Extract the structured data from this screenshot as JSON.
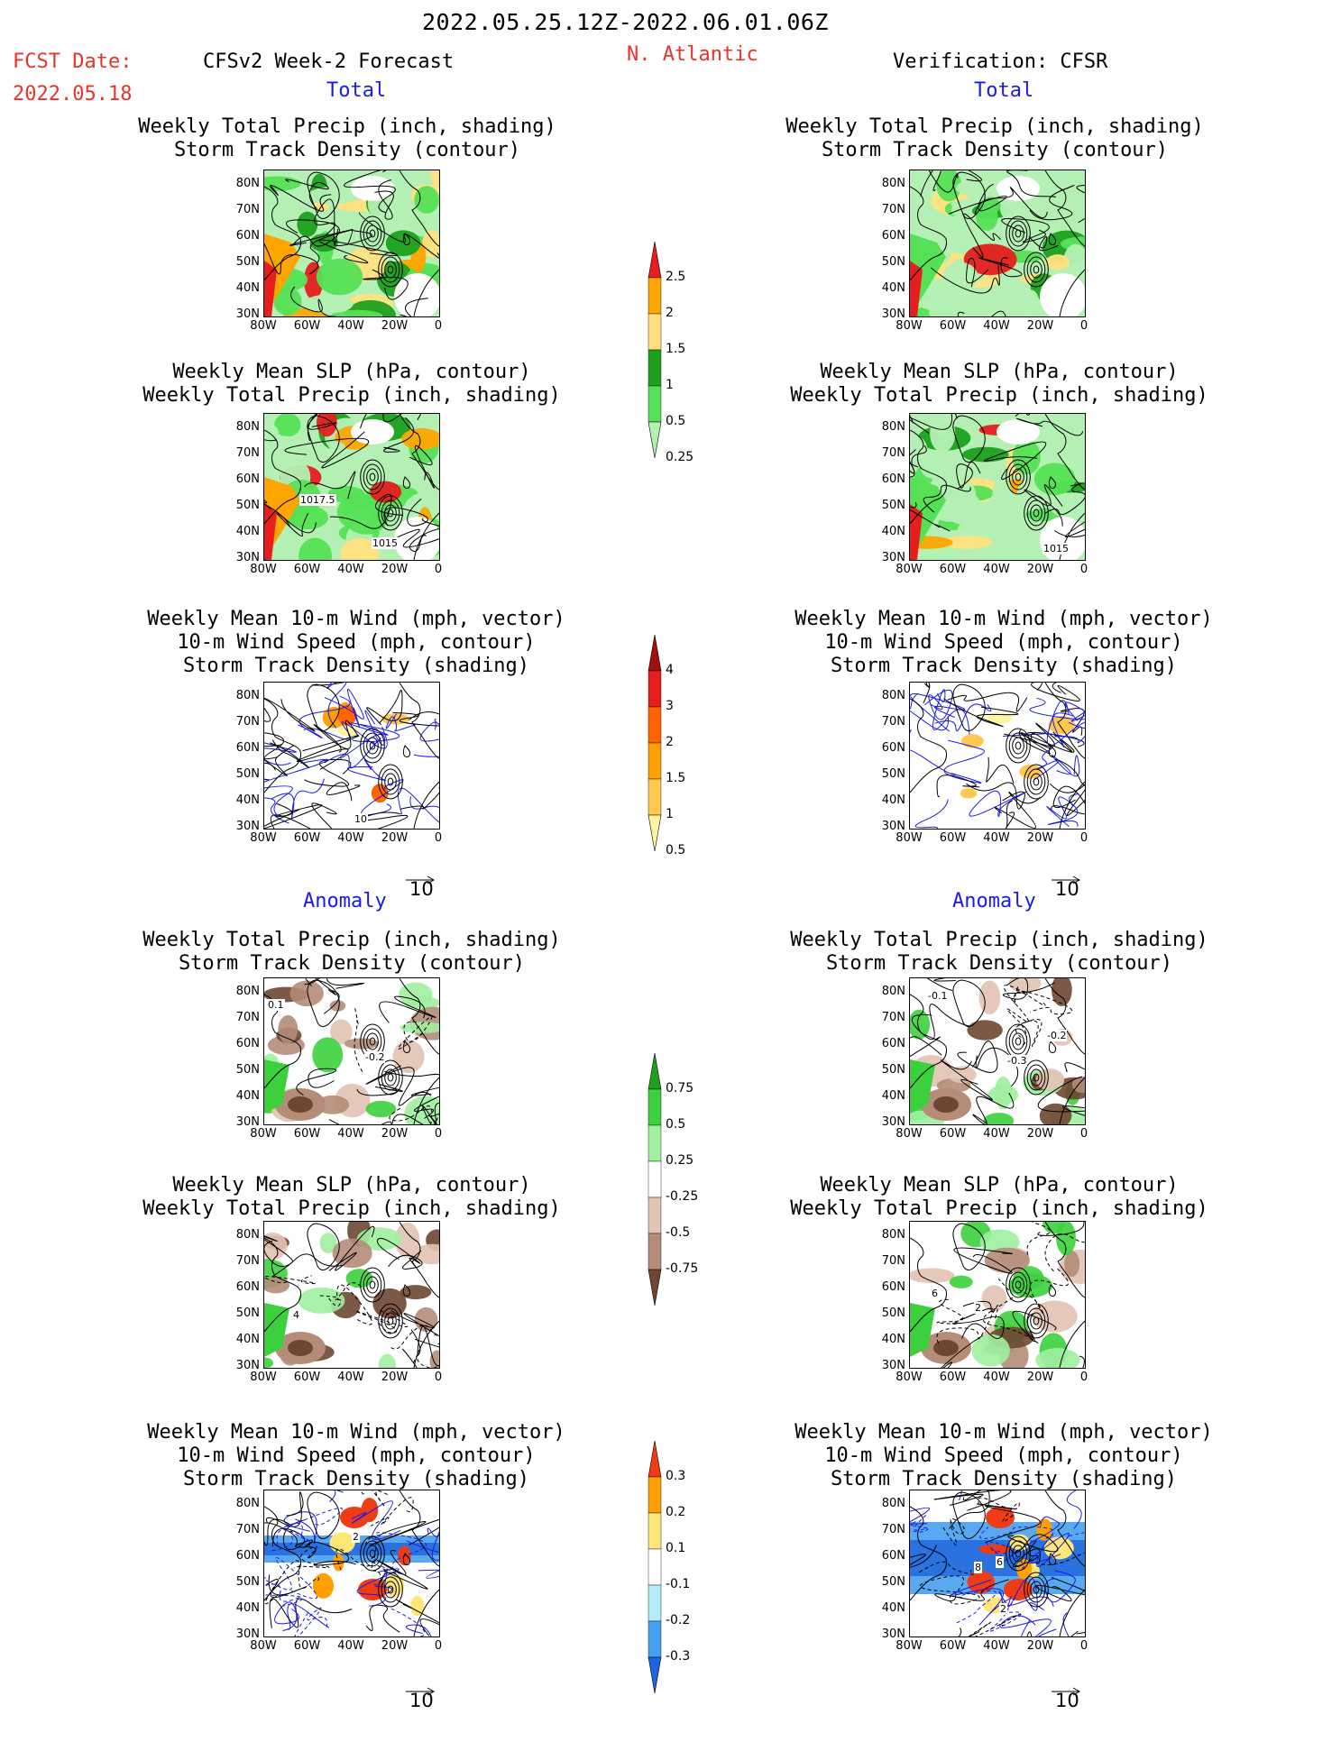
{
  "header": {
    "date_range": "2022.05.25.12Z-2022.06.01.06Z",
    "fcst_label": "FCST Date:",
    "fcst_date": "2022.05.18",
    "model_title": "CFSv2 Week-2 Forecast",
    "region": "N. Atlantic",
    "verification": "Verification: CFSR",
    "section_total": "Total",
    "section_anomaly": "Anomaly"
  },
  "panel_titles": {
    "precip_track": [
      "Weekly Total Precip (inch, shading)",
      "Storm Track Density (contour)"
    ],
    "slp_precip": [
      "Weekly Mean SLP (hPa, contour)",
      "Weekly Total Precip (inch, shading)"
    ],
    "wind_track": [
      "Weekly Mean 10-m Wind (mph, vector)",
      "10-m Wind Speed (mph, contour)",
      "Storm Track Density (shading)"
    ]
  },
  "axes": {
    "lat_ticks": [
      "80N",
      "70N",
      "60N",
      "50N",
      "40N",
      "30N"
    ],
    "lon_ticks": [
      "80W",
      "60W",
      "40W",
      "20W",
      "0"
    ]
  },
  "contour_labels": {
    "fc_slp_1": "1017.5",
    "fc_slp_2": "1015",
    "ob_slp_1": "1015",
    "fc_wind_1": "10",
    "fc_anom_precip_1": "-0.2",
    "fc_anom_precip_2": "0.1",
    "ob_anom_precip_1": "-0.1",
    "ob_anom_precip_2": "-0.2",
    "ob_anom_precip_3": "-0.3",
    "fc_anom_slp_1": "4",
    "ob_anom_slp_1": "6",
    "ob_anom_slp_2": "2",
    "fc_anom_wind_1": "2",
    "ob_anom_wind_1": "8",
    "ob_anom_wind_2": "6",
    "ob_anom_wind_3": "2"
  },
  "vector_ref": "10",
  "colorbars": {
    "precip_total": {
      "labels": [
        "2.5",
        "2",
        "1.5",
        "1",
        "0.5",
        "0.25"
      ],
      "colors": [
        "#e61e1e",
        "#ffa500",
        "#ffe080",
        "#1ea01e",
        "#55e055",
        "#b4f0b4"
      ]
    },
    "track_total": {
      "labels": [
        "4",
        "3",
        "2",
        "1.5",
        "1",
        "0.5"
      ],
      "colors": [
        "#a01010",
        "#e61e1e",
        "#ff6400",
        "#ffa000",
        "#ffc850",
        "#fff5a0"
      ]
    },
    "precip_anom": {
      "labels": [
        "0.75",
        "0.5",
        "0.25",
        "-0.25",
        "-0.5",
        "-0.75"
      ],
      "colors": [
        "#1ea01e",
        "#3cd03c",
        "#a0f0a0",
        "#ffffff",
        "#e1c3b4",
        "#b48c78",
        "#6e4632"
      ]
    },
    "track_anom": {
      "labels": [
        "0.3",
        "0.2",
        "0.1",
        "-0.1",
        "-0.2",
        "-0.3"
      ],
      "colors": [
        "#f03c14",
        "#ffa000",
        "#ffe678",
        "#ffffff",
        "#b4ecf8",
        "#46a0f0",
        "#1e64dc"
      ]
    }
  }
}
